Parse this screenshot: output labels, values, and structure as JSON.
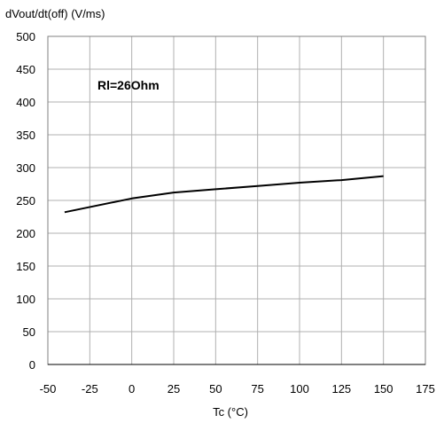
{
  "chart_data": {
    "type": "line",
    "title": "",
    "xlabel": "Tc (°C)",
    "ylabel": "dVout/dt(off) (V/ms)",
    "xlim": [
      -50,
      175
    ],
    "ylim": [
      0,
      500
    ],
    "xticks": [
      -50,
      -25,
      0,
      25,
      50,
      75,
      100,
      125,
      150,
      175
    ],
    "yticks": [
      0,
      50,
      100,
      150,
      200,
      250,
      300,
      350,
      400,
      450,
      500
    ],
    "grid": true,
    "annotations": [
      {
        "text": "Rl=26Ohm"
      }
    ],
    "series": [
      {
        "x": [
          -40,
          0,
          25,
          50,
          75,
          100,
          125,
          150
        ],
        "y": [
          232,
          253,
          262,
          267,
          272,
          277,
          281,
          287
        ],
        "color": "#000000"
      }
    ]
  }
}
